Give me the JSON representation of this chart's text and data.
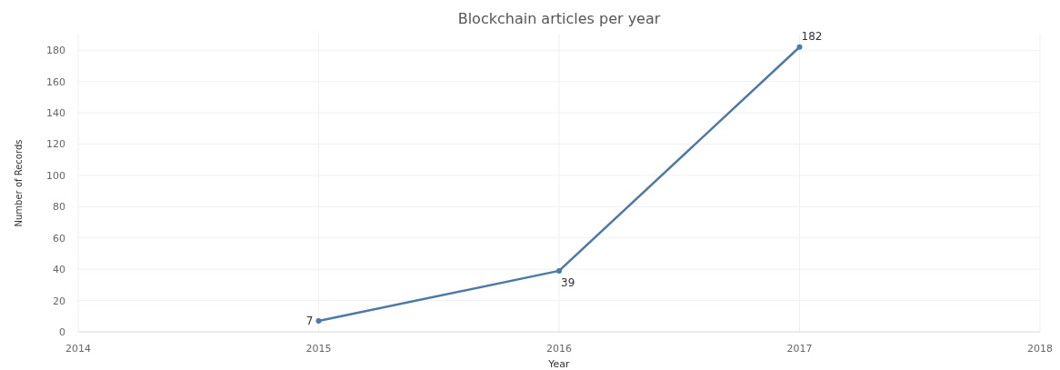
{
  "chart_data": {
    "type": "line",
    "title": "Blockchain articles per year",
    "xlabel": "Year",
    "ylabel": "Number of Records",
    "x": [
      2015,
      2016,
      2017
    ],
    "series": [
      {
        "color": "#4e79a7",
        "values": [
          7,
          39,
          182
        ]
      }
    ],
    "xlim": [
      2014,
      2018
    ],
    "xticks": [
      2014,
      2015,
      2016,
      2017,
      2018
    ],
    "ylim": [
      0,
      190
    ],
    "yticks": [
      0,
      20,
      40,
      60,
      80,
      100,
      120,
      140,
      160,
      180
    ],
    "grid": true,
    "marker": "circle",
    "line_style": "solid",
    "data_labels": true
  }
}
